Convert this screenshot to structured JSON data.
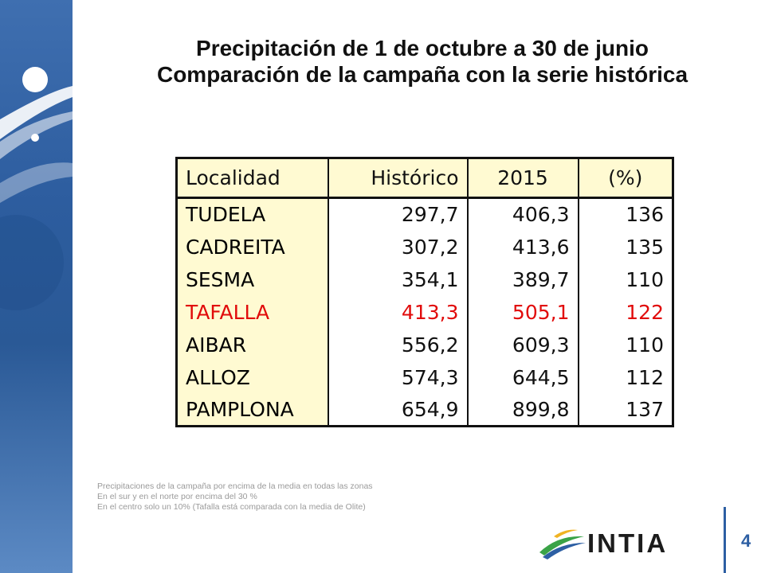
{
  "title": {
    "line1": "Precipitación de 1 de octubre a 30 de junio",
    "line2": "Comparación de la campaña con la serie histórica"
  },
  "table": {
    "headers": [
      "Localidad",
      "Histórico",
      "2015",
      "(%)"
    ],
    "rows": [
      {
        "localidad": "TUDELA",
        "historico": "297,7",
        "y2015": "406,3",
        "pct": "136"
      },
      {
        "localidad": "CADREITA",
        "historico": "307,2",
        "y2015": "413,6",
        "pct": "135"
      },
      {
        "localidad": "SESMA",
        "historico": "354,1",
        "y2015": "389,7",
        "pct": "110"
      },
      {
        "localidad": "TAFALLA",
        "historico": "413,3",
        "y2015": "505,1",
        "pct": "122"
      },
      {
        "localidad": "AIBAR",
        "historico": "556,2",
        "y2015": "609,3",
        "pct": "110"
      },
      {
        "localidad": "ALLOZ",
        "historico": "574,3",
        "y2015": "644,5",
        "pct": "112"
      },
      {
        "localidad": "PAMPLONA",
        "historico": "654,9",
        "y2015": "899,8",
        "pct": "137"
      }
    ],
    "highlight_color": "#e10b0b",
    "header_bg": "#fffad2"
  },
  "notes": [
    "Precipitaciones de la campaña por encima de la media en todas las zonas",
    "En el sur y en el norte por encima del 30 %",
    "En el centro solo un 10% (Tafalla está comparada con la media de Olite)"
  ],
  "logo": {
    "text": "INTIA",
    "icon": "intia-swoosh-logo"
  },
  "page_number": "4",
  "colors": {
    "band": "#2d5d9f",
    "accent": "#2d5fa3"
  }
}
